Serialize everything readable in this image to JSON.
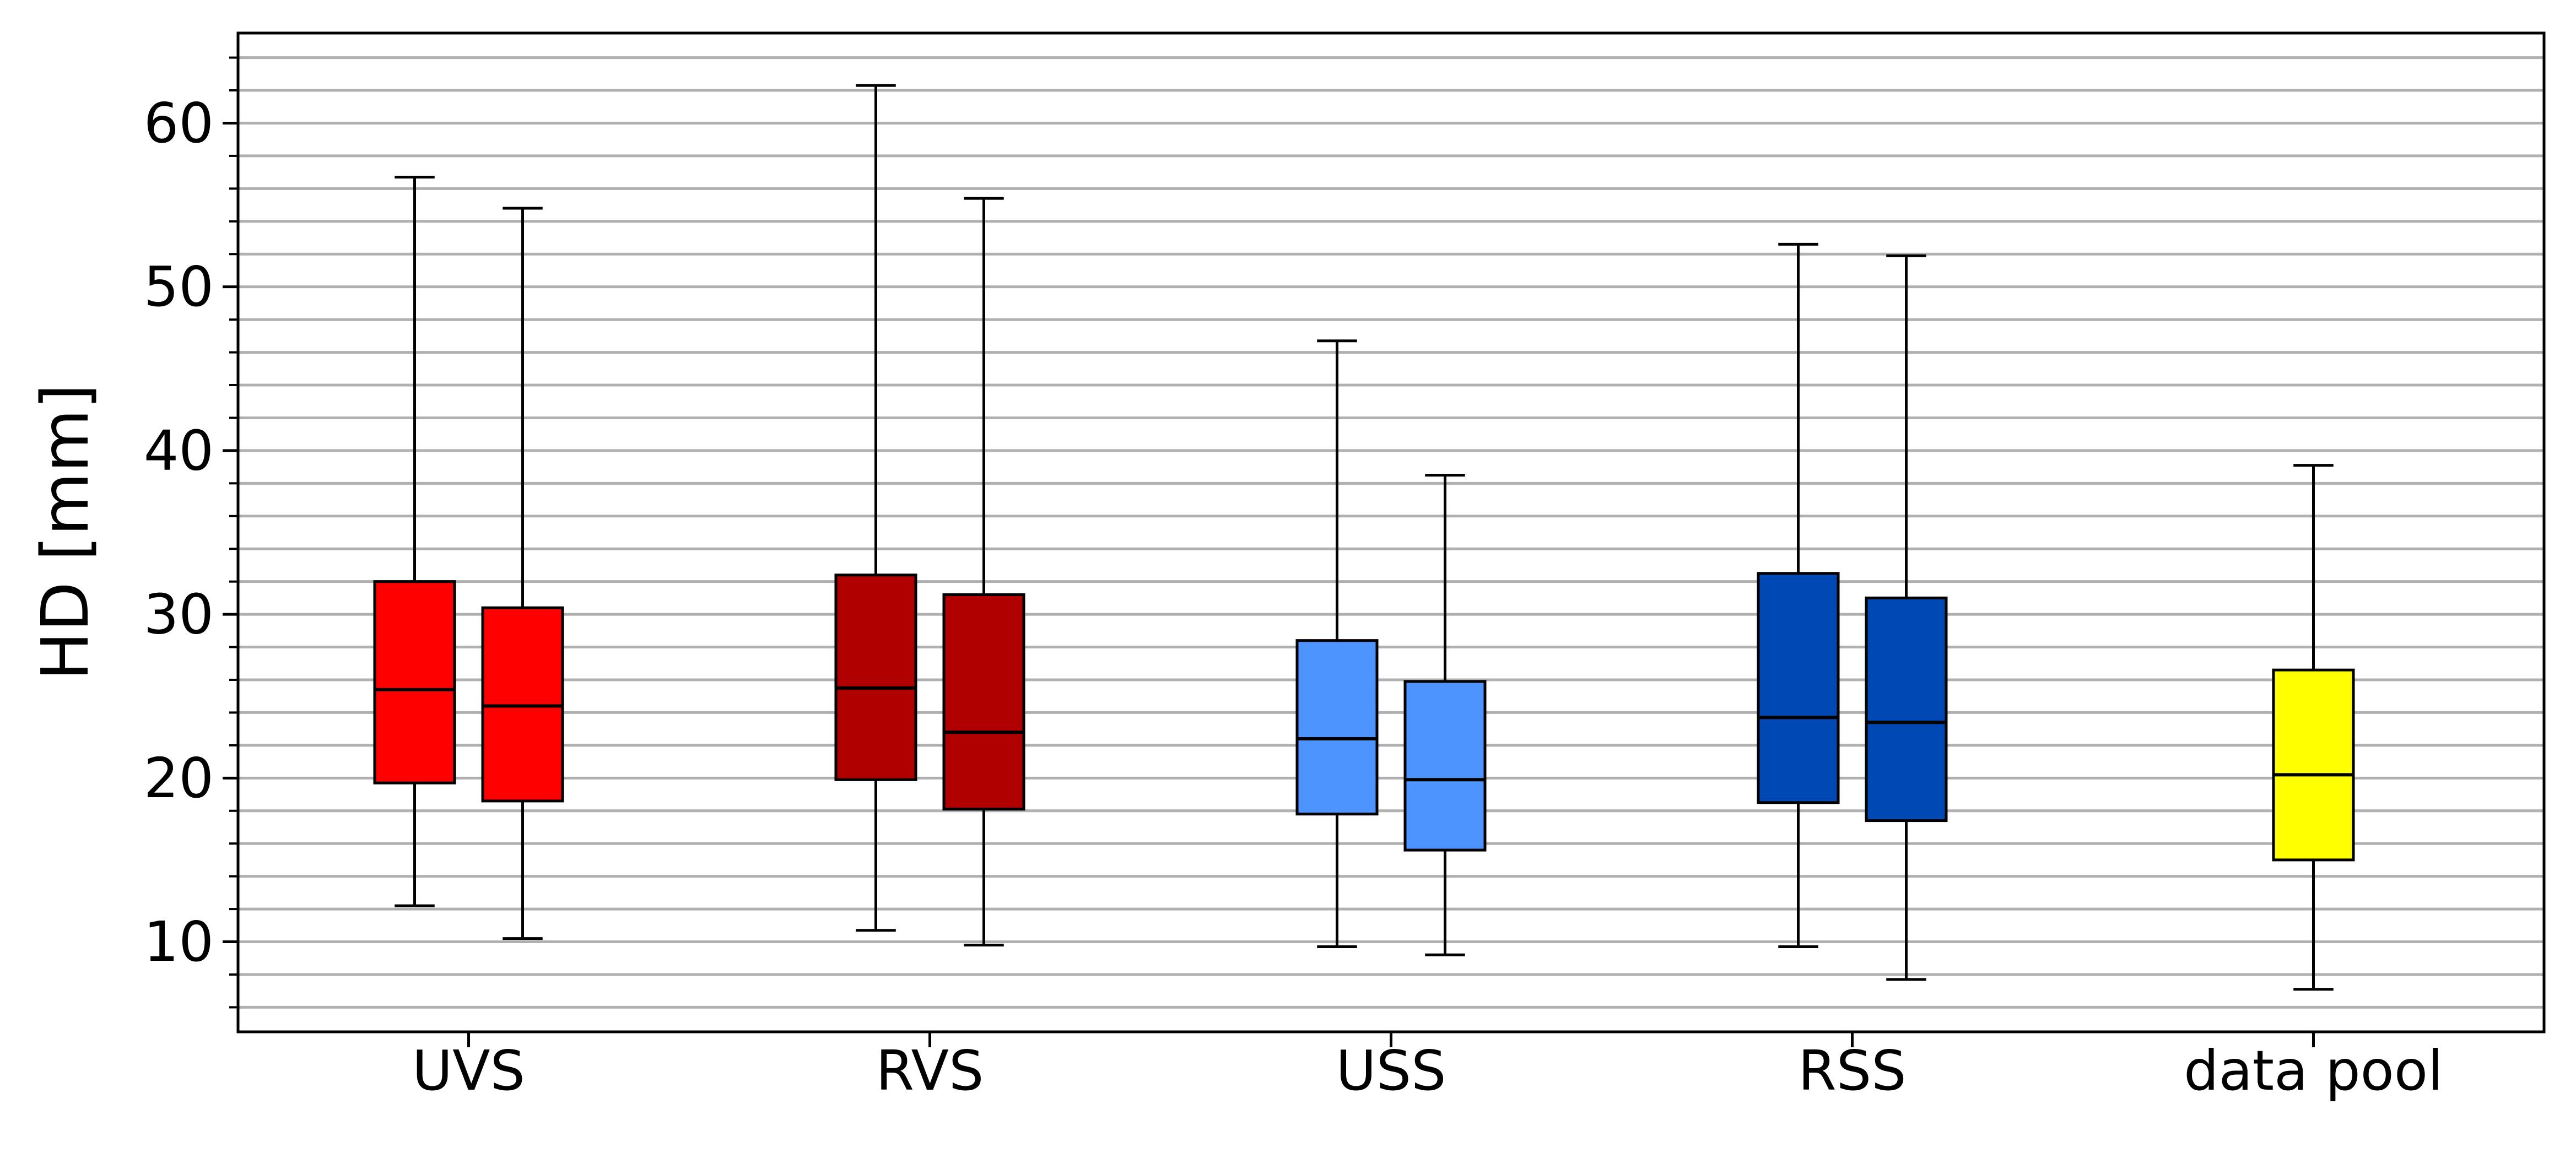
{
  "chart_data": {
    "type": "boxplot",
    "title": "",
    "xlabel": "",
    "ylabel": "HD [mm]",
    "ylim": [
      4.5,
      65.5
    ],
    "yticks": [
      10,
      20,
      30,
      40,
      50,
      60
    ],
    "yticks_minor_step": 2,
    "grid": "horizontal, minor",
    "categories": [
      "UVS",
      "RVS",
      "USS",
      "RSS",
      "data pool"
    ],
    "groups": [
      {
        "category": "UVS",
        "boxes": [
          {
            "min": 12.2,
            "q1": 19.7,
            "median": 25.4,
            "q3": 32.0,
            "max": 56.7,
            "color": "#ff0000"
          },
          {
            "min": 10.2,
            "q1": 18.6,
            "median": 24.4,
            "q3": 30.4,
            "max": 54.8,
            "color": "#ff0000"
          }
        ]
      },
      {
        "category": "RVS",
        "boxes": [
          {
            "min": 10.7,
            "q1": 19.9,
            "median": 25.5,
            "q3": 32.4,
            "max": 62.3,
            "color": "#b00000"
          },
          {
            "min": 9.8,
            "q1": 18.1,
            "median": 22.8,
            "q3": 31.2,
            "max": 55.4,
            "color": "#b00000"
          }
        ]
      },
      {
        "category": "USS",
        "boxes": [
          {
            "min": 9.7,
            "q1": 17.8,
            "median": 22.4,
            "q3": 28.4,
            "max": 46.7,
            "color": "#4d94ff"
          },
          {
            "min": 9.2,
            "q1": 15.6,
            "median": 19.9,
            "q3": 25.9,
            "max": 38.5,
            "color": "#4d94ff"
          }
        ]
      },
      {
        "category": "RSS",
        "boxes": [
          {
            "min": 9.7,
            "q1": 18.5,
            "median": 23.7,
            "q3": 32.5,
            "max": 52.6,
            "color": "#0048b3"
          },
          {
            "min": 7.7,
            "q1": 17.4,
            "median": 23.4,
            "q3": 31.0,
            "max": 51.9,
            "color": "#0048b3"
          }
        ]
      },
      {
        "category": "data pool",
        "boxes": [
          {
            "min": 7.1,
            "q1": 15.0,
            "median": 20.2,
            "q3": 26.6,
            "max": 39.1,
            "color": "#ffff00"
          }
        ]
      }
    ]
  }
}
